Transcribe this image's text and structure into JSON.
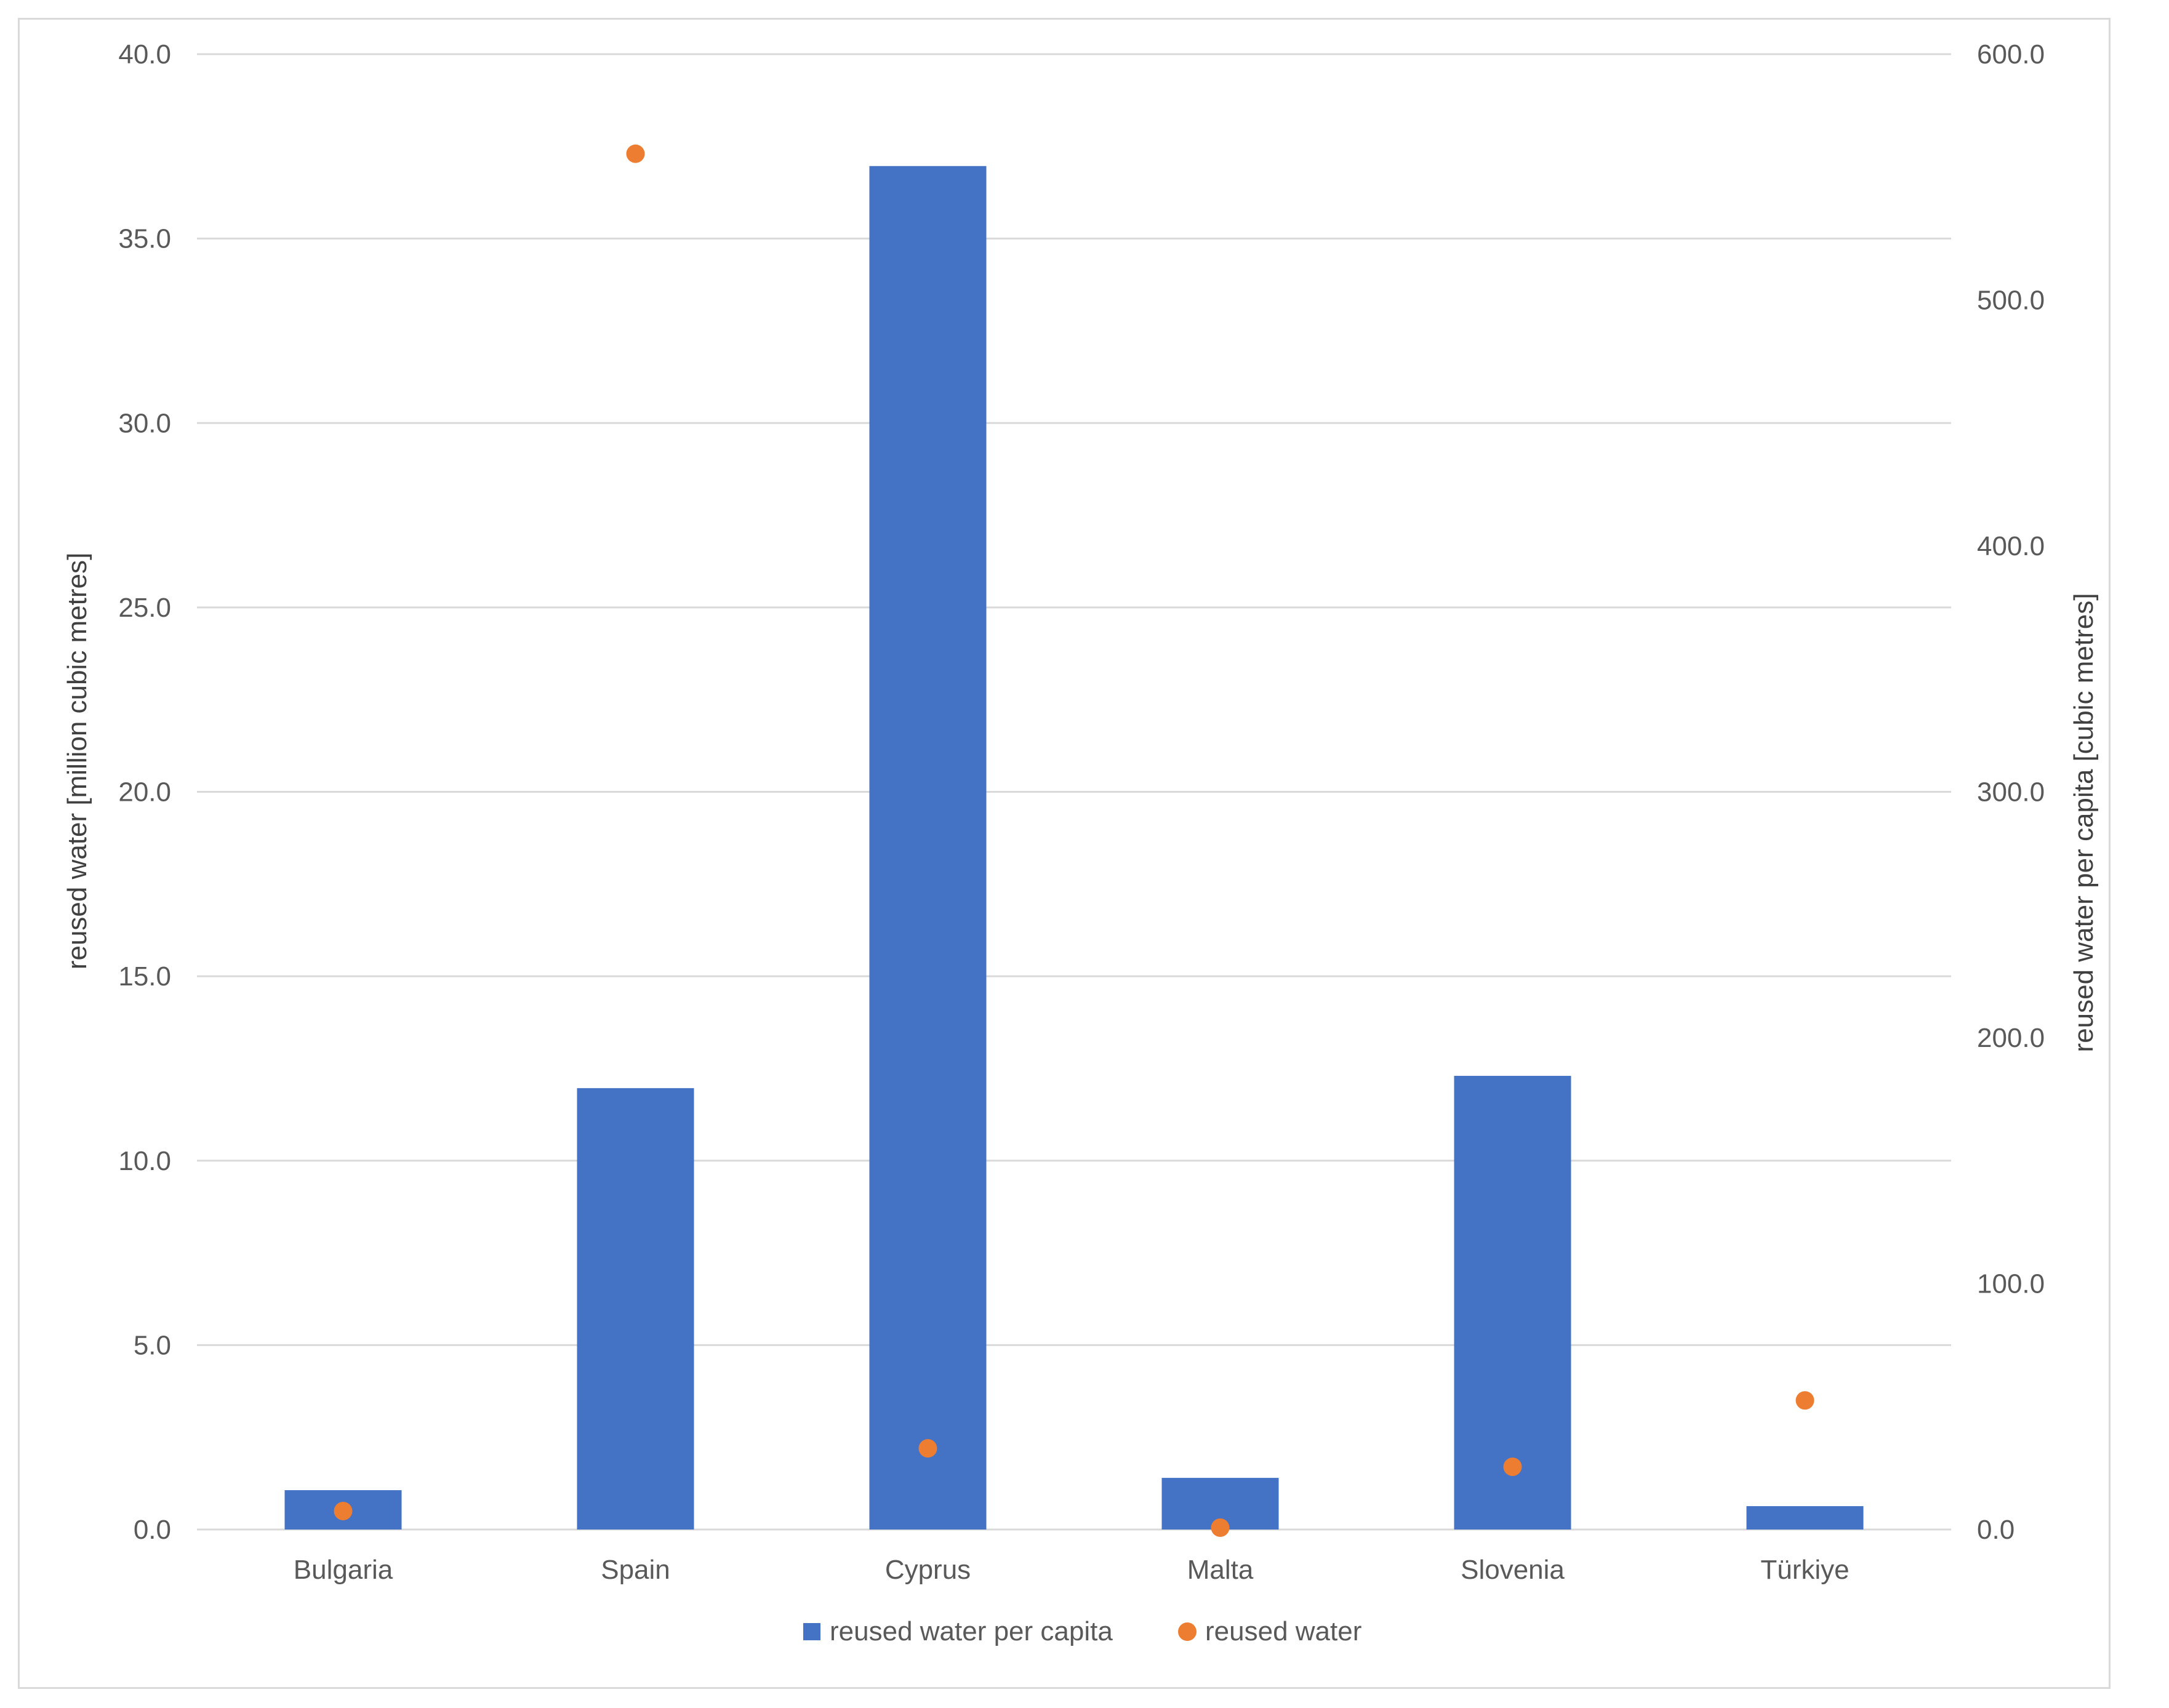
{
  "chart_data": {
    "type": "bar",
    "categories": [
      "Bulgaria",
      "Spain",
      "Cyprus",
      "Malta",
      "Slovenia",
      "Türkiye"
    ],
    "series": [
      {
        "name": "reused water per capita",
        "kind": "bar",
        "axis": "right",
        "color": "#4472c4",
        "values": [
          16.0,
          179.5,
          554.5,
          21.0,
          184.5,
          9.5
        ]
      },
      {
        "name": "reused water",
        "kind": "scatter",
        "axis": "left",
        "color": "#ed7d31",
        "values": [
          0.5,
          37.3,
          2.2,
          0.05,
          1.7,
          3.5
        ]
      }
    ],
    "left_axis": {
      "label": "reused water [million cubic metres]",
      "range": [
        0,
        40
      ],
      "ticks": [
        "0.0",
        "5.0",
        "10.0",
        "15.0",
        "20.0",
        "25.0",
        "30.0",
        "35.0",
        "40.0"
      ]
    },
    "right_axis": {
      "label": "reused water per capita [cubic metres]",
      "range": [
        0,
        600
      ],
      "ticks": [
        "0.0",
        "100.0",
        "200.0",
        "300.0",
        "400.0",
        "500.0",
        "600.0"
      ]
    },
    "grid": true,
    "legend_position": "bottom"
  }
}
